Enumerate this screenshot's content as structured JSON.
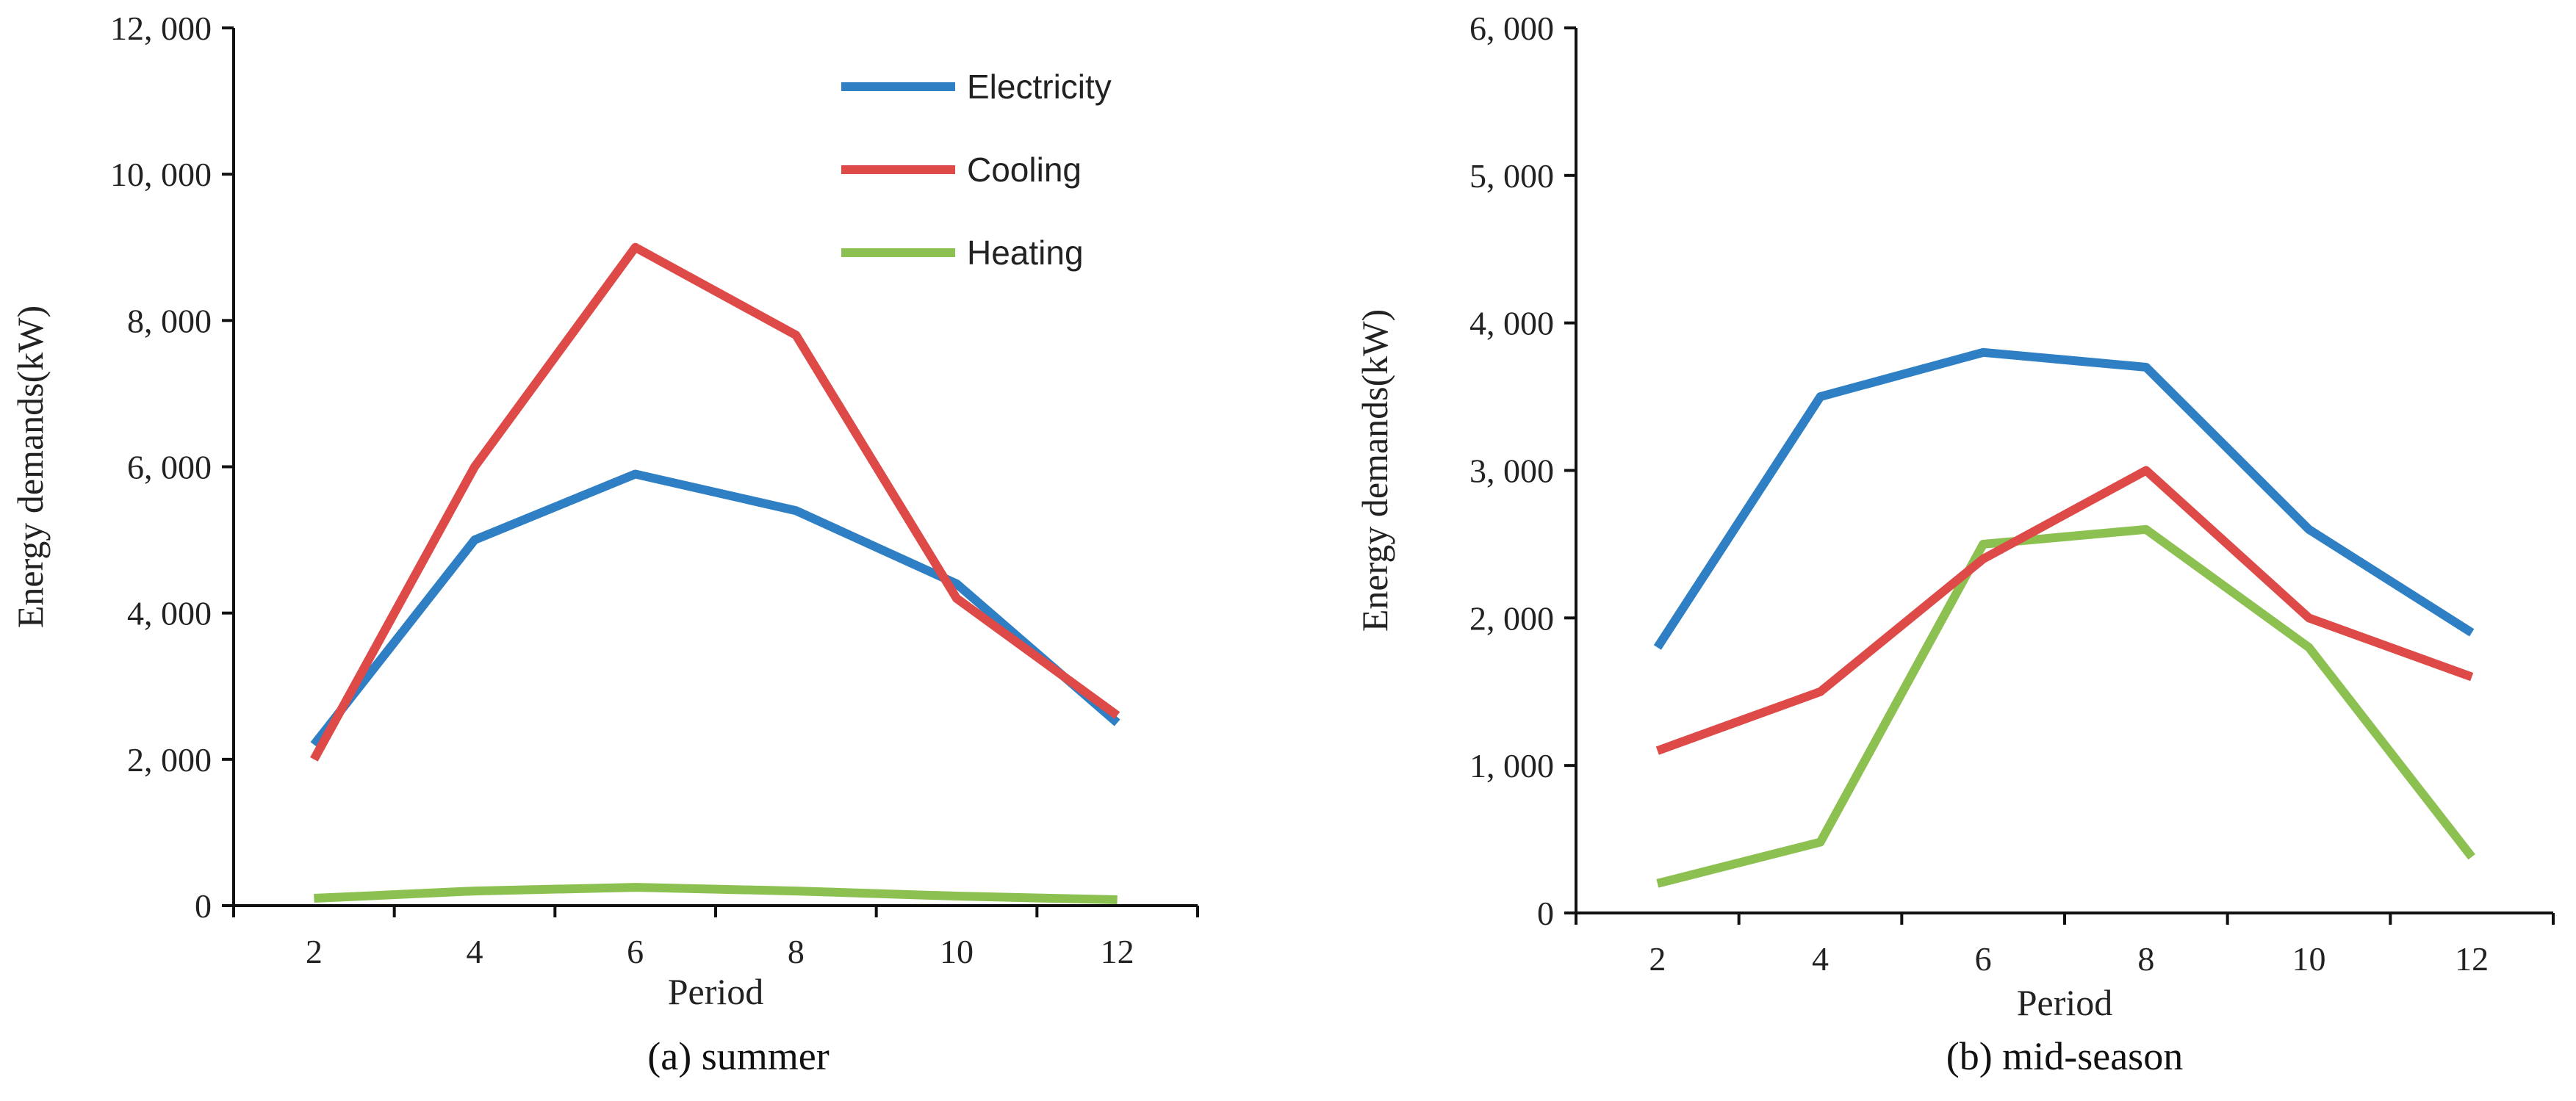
{
  "chart_data": [
    {
      "type": "line",
      "caption": "(a) summer",
      "xlabel": "Period",
      "ylabel": "Energy demands(kW)",
      "x": [
        2,
        4,
        6,
        8,
        10,
        12
      ],
      "xlim": [
        1,
        13
      ],
      "ylim": [
        0,
        12000
      ],
      "yticks": [
        0,
        2000,
        4000,
        6000,
        8000,
        10000,
        12000
      ],
      "ytick_labels": [
        "0",
        "2, 000",
        "4, 000",
        "6, 000",
        "8, 000",
        "10, 000",
        "12, 000"
      ],
      "grid": false,
      "legend": "top-right",
      "series": [
        {
          "name": "Electricity",
          "color": "#2E7FC3",
          "values": [
            2200,
            5000,
            5900,
            5400,
            4400,
            2500
          ]
        },
        {
          "name": "Cooling",
          "color": "#DE4A47",
          "values": [
            2000,
            6000,
            9000,
            7800,
            4200,
            2600
          ]
        },
        {
          "name": "Heating",
          "color": "#8CC152",
          "values": [
            100,
            200,
            250,
            200,
            130,
            80
          ]
        }
      ]
    },
    {
      "type": "line",
      "caption": "(b) mid-season",
      "xlabel": "Period",
      "ylabel": "Energy demands(kW)",
      "x": [
        2,
        4,
        6,
        8,
        10,
        12
      ],
      "xlim": [
        1,
        13
      ],
      "ylim": [
        0,
        6000
      ],
      "yticks": [
        0,
        1000,
        2000,
        3000,
        4000,
        5000,
        6000
      ],
      "ytick_labels": [
        "0",
        "1, 000",
        "2, 000",
        "3, 000",
        "4, 000",
        "5, 000",
        "6, 000"
      ],
      "grid": false,
      "series": [
        {
          "name": "Electricity",
          "color": "#2E7FC3",
          "values": [
            1800,
            3500,
            3800,
            3700,
            2600,
            1900
          ]
        },
        {
          "name": "Cooling",
          "color": "#DE4A47",
          "values": [
            1100,
            1500,
            2400,
            3000,
            2000,
            1600
          ]
        },
        {
          "name": "Heating",
          "color": "#8CC152",
          "values": [
            200,
            480,
            2500,
            2600,
            1800,
            380
          ]
        }
      ]
    }
  ]
}
